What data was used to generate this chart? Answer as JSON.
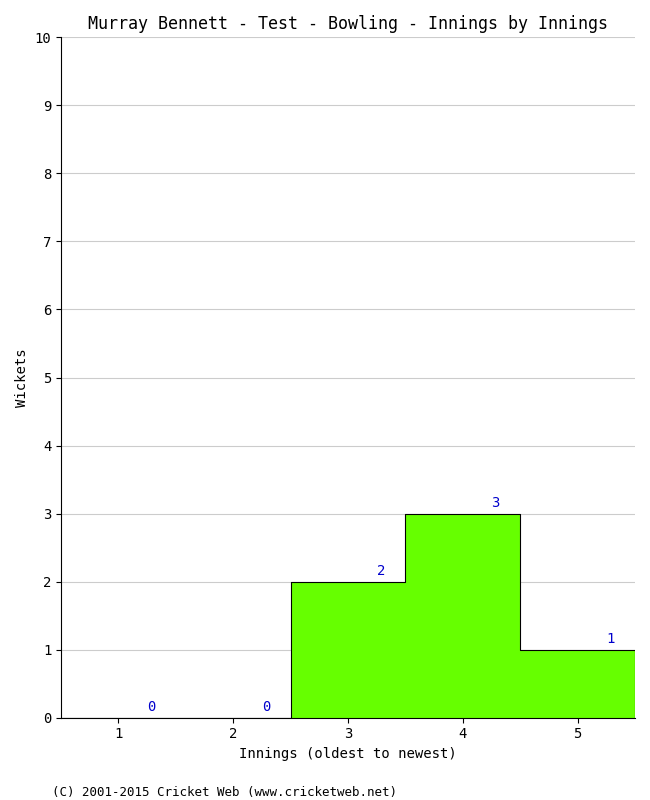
{
  "title": "Murray Bennett - Test - Bowling - Innings by Innings",
  "xlabel": "Innings (oldest to newest)",
  "ylabel": "Wickets",
  "categories": [
    1,
    2,
    3,
    4,
    5
  ],
  "values": [
    0,
    0,
    2,
    3,
    1
  ],
  "bar_color": "#66ff00",
  "bar_edge_color": "#000000",
  "ylim": [
    0,
    10
  ],
  "yticks": [
    0,
    1,
    2,
    3,
    4,
    5,
    6,
    7,
    8,
    9,
    10
  ],
  "xticks": [
    1,
    2,
    3,
    4,
    5
  ],
  "background_color": "#ffffff",
  "grid_color": "#cccccc",
  "label_color": "#0000cc",
  "footer": "(C) 2001-2015 Cricket Web (www.cricketweb.net)",
  "title_fontsize": 12,
  "axis_label_fontsize": 10,
  "tick_fontsize": 10,
  "annotation_fontsize": 10,
  "footer_fontsize": 9
}
